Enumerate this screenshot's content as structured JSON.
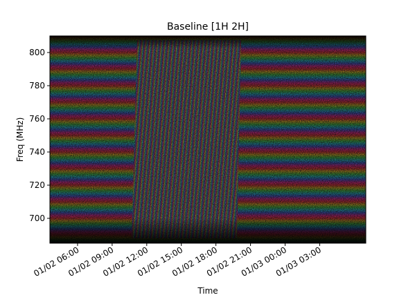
{
  "chart_data": {
    "type": "heatmap",
    "title": "Baseline [1H 2H]",
    "xlabel": "Time",
    "ylabel": "Freq (MHz)",
    "xlim": [
      3.6,
      31.0
    ],
    "ylim": [
      685,
      810
    ],
    "xticks": [
      {
        "value": 6,
        "label": "01/02 06:00"
      },
      {
        "value": 9,
        "label": "01/02 09:00"
      },
      {
        "value": 12,
        "label": "01/02 12:00"
      },
      {
        "value": 15,
        "label": "01/02 15:00"
      },
      {
        "value": 18,
        "label": "01/02 18:00"
      },
      {
        "value": 21,
        "label": "01/02 21:00"
      },
      {
        "value": 24,
        "label": "01/03 00:00"
      },
      {
        "value": 27,
        "label": "01/03 03:00"
      }
    ],
    "yticks": [
      700,
      720,
      740,
      760,
      780,
      800
    ]
  }
}
